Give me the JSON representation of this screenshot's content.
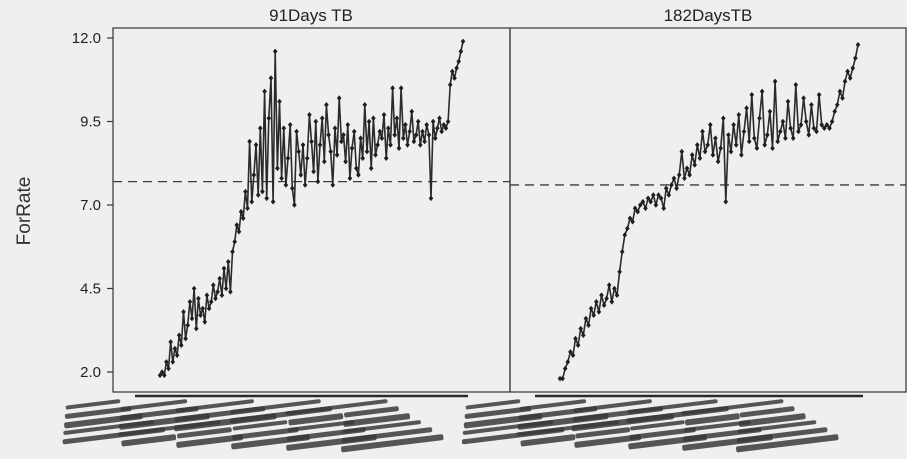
{
  "chart_data": {
    "type": "line",
    "ylabel": "ForRate",
    "ylim": [
      1.4,
      12.3
    ],
    "yticks": [
      {
        "value": 2.0,
        "label": "2.0"
      },
      {
        "value": 4.5,
        "label": "4.5"
      },
      {
        "value": 7.0,
        "label": "7.0"
      },
      {
        "value": 9.5,
        "label": "9.5"
      },
      {
        "value": 12.0,
        "label": "12.0"
      }
    ],
    "grid": false,
    "line_color": "#2b2b2b",
    "reference_color": "#3a3a3a",
    "panels": [
      {
        "title": "91Days TB",
        "reference_line": 7.7,
        "x_tick_labels_illegible": true,
        "values": [
          1.9,
          2.0,
          1.9,
          2.3,
          2.1,
          2.9,
          2.3,
          2.7,
          2.5,
          3.1,
          2.8,
          3.8,
          3.0,
          3.4,
          4.1,
          3.6,
          4.5,
          3.3,
          4.2,
          3.7,
          3.9,
          3.5,
          4.3,
          3.9,
          4.1,
          4.6,
          4.2,
          4.4,
          4.8,
          4.3,
          5.1,
          4.5,
          5.3,
          4.4,
          5.6,
          5.9,
          6.4,
          6.2,
          6.8,
          6.6,
          7.4,
          6.9,
          8.9,
          7.1,
          7.9,
          8.8,
          7.3,
          9.3,
          7.4,
          10.4,
          7.2,
          9.6,
          10.8,
          7.1,
          11.6,
          8.1,
          10.1,
          7.8,
          9.3,
          7.6,
          8.4,
          9.4,
          7.5,
          7.0,
          9.2,
          8.6,
          7.9,
          8.8,
          7.6,
          8.4,
          9.7,
          8.9,
          8.0,
          9.5,
          7.7,
          8.8,
          9.6,
          8.3,
          10.0,
          9.1,
          8.6,
          7.6,
          9.3,
          8.5,
          10.2,
          8.9,
          9.1,
          8.3,
          9.4,
          7.8,
          8.7,
          9.2,
          8.1,
          7.9,
          9.0,
          8.4,
          10.0,
          8.6,
          9.5,
          8.1,
          9.6,
          8.5,
          8.8,
          9.2,
          9.0,
          9.7,
          8.4,
          9.3,
          8.8,
          10.5,
          9.1,
          9.6,
          8.7,
          10.5,
          9.0,
          9.4,
          8.8,
          9.2,
          9.8,
          8.9,
          9.1,
          9.5,
          8.8,
          9.2,
          8.9,
          9.4,
          9.1,
          7.2,
          9.5,
          9.0,
          9.3,
          9.6,
          9.2,
          9.4,
          9.3,
          9.5,
          10.6,
          11.0,
          10.8,
          11.1,
          11.3,
          11.6,
          11.9
        ]
      },
      {
        "title": "182DaysTB",
        "reference_line": 7.6,
        "x_tick_labels_illegible": true,
        "values": [
          1.8,
          1.8,
          2.1,
          2.3,
          2.6,
          2.5,
          3.0,
          2.8,
          3.3,
          3.1,
          3.6,
          3.4,
          3.9,
          3.7,
          4.1,
          3.8,
          4.3,
          4.0,
          4.2,
          4.6,
          4.1,
          4.5,
          4.3,
          5.0,
          5.6,
          6.1,
          6.3,
          6.6,
          6.5,
          6.9,
          6.8,
          7.0,
          7.1,
          6.9,
          7.2,
          7.1,
          7.3,
          7.0,
          7.3,
          7.2,
          6.9,
          7.5,
          7.3,
          7.6,
          7.8,
          7.5,
          7.9,
          8.6,
          7.8,
          8.1,
          7.9,
          8.5,
          8.2,
          8.8,
          8.4,
          9.2,
          8.6,
          8.8,
          9.4,
          8.5,
          9.0,
          8.3,
          8.7,
          9.6,
          7.1,
          9.1,
          8.6,
          9.4,
          8.8,
          9.7,
          8.5,
          9.2,
          9.9,
          8.9,
          10.3,
          9.0,
          8.7,
          9.6,
          10.4,
          8.8,
          9.1,
          9.8,
          8.7,
          10.7,
          8.9,
          9.2,
          9.5,
          9.0,
          10.1,
          9.3,
          9.0,
          10.6,
          9.2,
          9.4,
          10.2,
          9.5,
          9.1,
          10.0,
          9.3,
          9.2,
          10.3,
          9.4,
          9.3,
          9.4,
          9.3,
          9.5,
          9.8,
          10.0,
          10.4,
          10.2,
          10.7,
          11.0,
          10.8,
          11.1,
          11.4,
          11.8
        ]
      }
    ]
  }
}
